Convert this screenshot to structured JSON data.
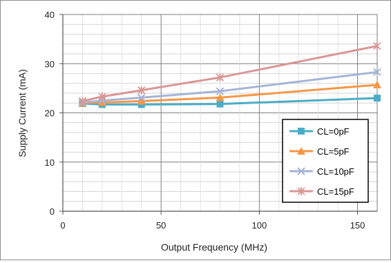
{
  "chart_data": {
    "type": "line",
    "title": "",
    "xlabel": "Output Frequency (MHz)",
    "ylabel": "Supply Current (mA)",
    "xlim": [
      0,
      160
    ],
    "ylim": [
      0,
      40
    ],
    "xticks": [
      0,
      50,
      100,
      150
    ],
    "yticks": [
      0,
      10,
      20,
      30,
      40
    ],
    "x_minor_step": 10,
    "y_minor_step": 2,
    "grid": true,
    "legend_position": "bottom-right",
    "series": [
      {
        "name": "CL=0pF",
        "color": "#4bacc6",
        "marker": "square",
        "x": [
          10,
          20,
          40,
          80,
          160
        ],
        "y": [
          21.9,
          21.7,
          21.7,
          21.8,
          23.0
        ]
      },
      {
        "name": "CL=5pF",
        "color": "#f79646",
        "marker": "triangle",
        "x": [
          10,
          20,
          40,
          80,
          160
        ],
        "y": [
          22.0,
          22.1,
          22.4,
          23.1,
          25.7
        ]
      },
      {
        "name": "CL=10pF",
        "color": "#a5b4d6",
        "marker": "x",
        "x": [
          10,
          20,
          40,
          80,
          160
        ],
        "y": [
          22.1,
          22.5,
          23.1,
          24.4,
          28.3
        ]
      },
      {
        "name": "CL=15pF",
        "color": "#d99694",
        "marker": "star",
        "x": [
          10,
          20,
          40,
          80,
          160
        ],
        "y": [
          22.4,
          23.3,
          24.6,
          27.2,
          33.6
        ]
      }
    ]
  }
}
